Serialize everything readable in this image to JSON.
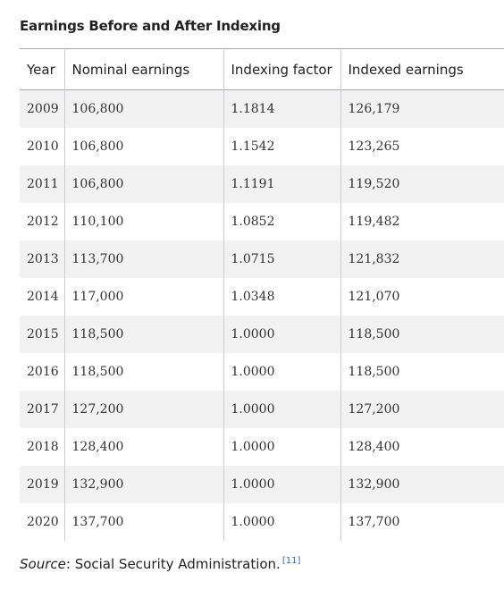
{
  "caption": "Earnings Before and After Indexing",
  "columns": [
    "Year",
    "Nominal earnings",
    "Indexing factor",
    "Indexed earnings"
  ],
  "rows": [
    [
      "2009",
      "106,800",
      "1.1814",
      "126,179"
    ],
    [
      "2010",
      "106,800",
      "1.1542",
      "123,265"
    ],
    [
      "2011",
      "106,800",
      "1.1191",
      "119,520"
    ],
    [
      "2012",
      "110,100",
      "1.0852",
      "119,482"
    ],
    [
      "2013",
      "113,700",
      "1.0715",
      "121,832"
    ],
    [
      "2014",
      "117,000",
      "1.0348",
      "121,070"
    ],
    [
      "2015",
      "118,500",
      "1.0000",
      "118,500"
    ],
    [
      "2016",
      "118,500",
      "1.0000",
      "118,500"
    ],
    [
      "2017",
      "127,200",
      "1.0000",
      "127,200"
    ],
    [
      "2018",
      "128,400",
      "1.0000",
      "128,400"
    ],
    [
      "2019",
      "132,900",
      "1.0000",
      "132,900"
    ],
    [
      "2020",
      "137,700",
      "1.0000",
      "137,700"
    ]
  ],
  "source": {
    "label": "Source",
    "separator": ": ",
    "text": "Social Security Administration.",
    "ref": "[11]"
  },
  "colors": {
    "odd_row": "#f2f2f2",
    "border": "#a2a9b1",
    "ref_link": "#3366cc"
  }
}
